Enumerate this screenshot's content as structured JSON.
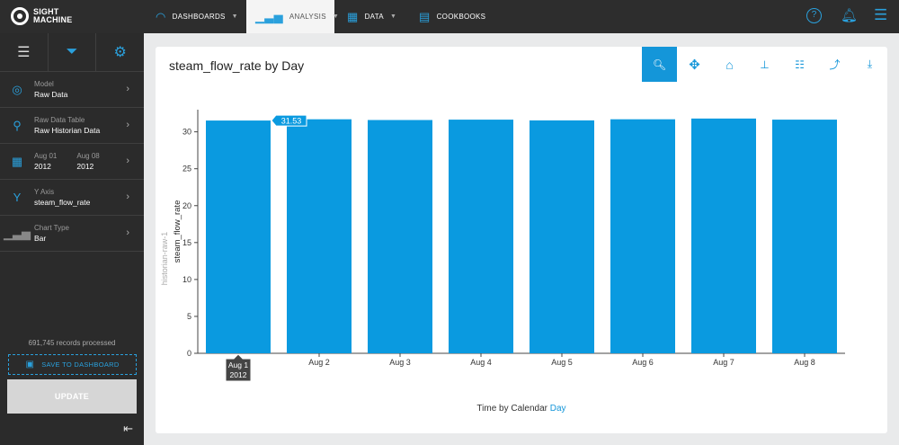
{
  "topbar": {
    "logo": [
      "SIGHT",
      "MACHINE"
    ],
    "tabs": [
      {
        "label": "DASHBOARDS",
        "icon": "gauge-icon"
      },
      {
        "label": "ANALYSIS",
        "icon": "bar-chart-icon"
      },
      {
        "label": "DATA",
        "icon": "table-icon"
      },
      {
        "label": "COOKBOOKS",
        "icon": "book-icon"
      }
    ],
    "icons": [
      "help-icon",
      "bell-icon",
      "menu-icon"
    ]
  },
  "sidebar": {
    "model_label": "Model",
    "model_value": "Raw Data",
    "table_label": "Raw Data Table",
    "table_value": "Raw Historian Data",
    "start_label": "Aug 01",
    "start_year": "2012",
    "end_label": "Aug 08",
    "end_year": "2012",
    "yaxis_label": "Y Axis",
    "yaxis_value": "steam_flow_rate",
    "charttype_label": "Chart Type",
    "charttype_value": "Bar",
    "records": "691,745 records processed",
    "save_label": "SAVE TO DASHBOARD",
    "update_label": "UPDATE"
  },
  "chart": {
    "title": "steam_flow_rate by Day",
    "x_title_prefix": "Time by Calendar",
    "x_title_accent": "Day"
  },
  "chart_data": {
    "type": "bar",
    "title": "steam_flow_rate by Day",
    "categories": [
      "Aug 1",
      "Aug 2",
      "Aug 3",
      "Aug 4",
      "Aug 5",
      "Aug 6",
      "Aug 7",
      "Aug 8"
    ],
    "values": [
      31.53,
      31.7,
      31.6,
      31.65,
      31.55,
      31.7,
      31.8,
      31.65
    ],
    "ylabel": "steam_flow_rate",
    "ylabel_secondary": "historian-raw-1",
    "xlabel": "Time by Calendar Day",
    "yticks": [
      0,
      5,
      10,
      15,
      20,
      25,
      30
    ],
    "ylim": [
      0,
      33
    ],
    "hover": {
      "index": 0,
      "value_label": "31.53",
      "x_label": "Aug 1",
      "x_sublabel": "2012"
    },
    "bar_color": "#0a9ae0",
    "grid": false
  }
}
